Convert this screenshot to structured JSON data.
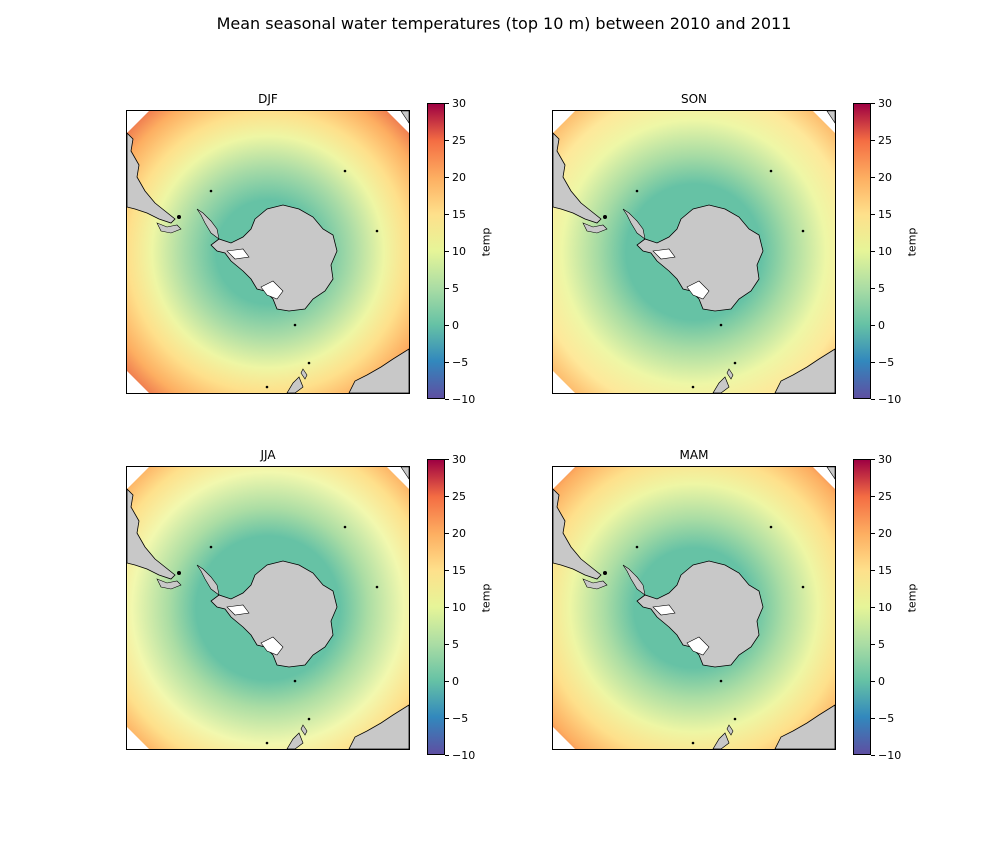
{
  "figure": {
    "title": "Mean seasonal water temperatures (top 10 m) between 2010 and 2011"
  },
  "colorbar": {
    "label": "temp",
    "ticks": [
      "30",
      "25",
      "20",
      "15",
      "10",
      "5",
      "0",
      "−5",
      "−10"
    ],
    "range": [
      -10,
      30
    ],
    "colormap": "Spectral_r",
    "colors": [
      "#5e4fa2",
      "#3288bd",
      "#66c2a5",
      "#abdda4",
      "#e6f598",
      "#fee08b",
      "#fdae61",
      "#f46d43",
      "#9e0142"
    ]
  },
  "panels": [
    {
      "id": "djf",
      "title": "DJF"
    },
    {
      "id": "son",
      "title": "SON"
    },
    {
      "id": "jja",
      "title": "JJA"
    },
    {
      "id": "mam",
      "title": "MAM"
    }
  ],
  "map": {
    "projection": "south-polar-stereographic",
    "land_color": "#c8c8c8",
    "ice_shelf_color": "#ffffff"
  }
}
